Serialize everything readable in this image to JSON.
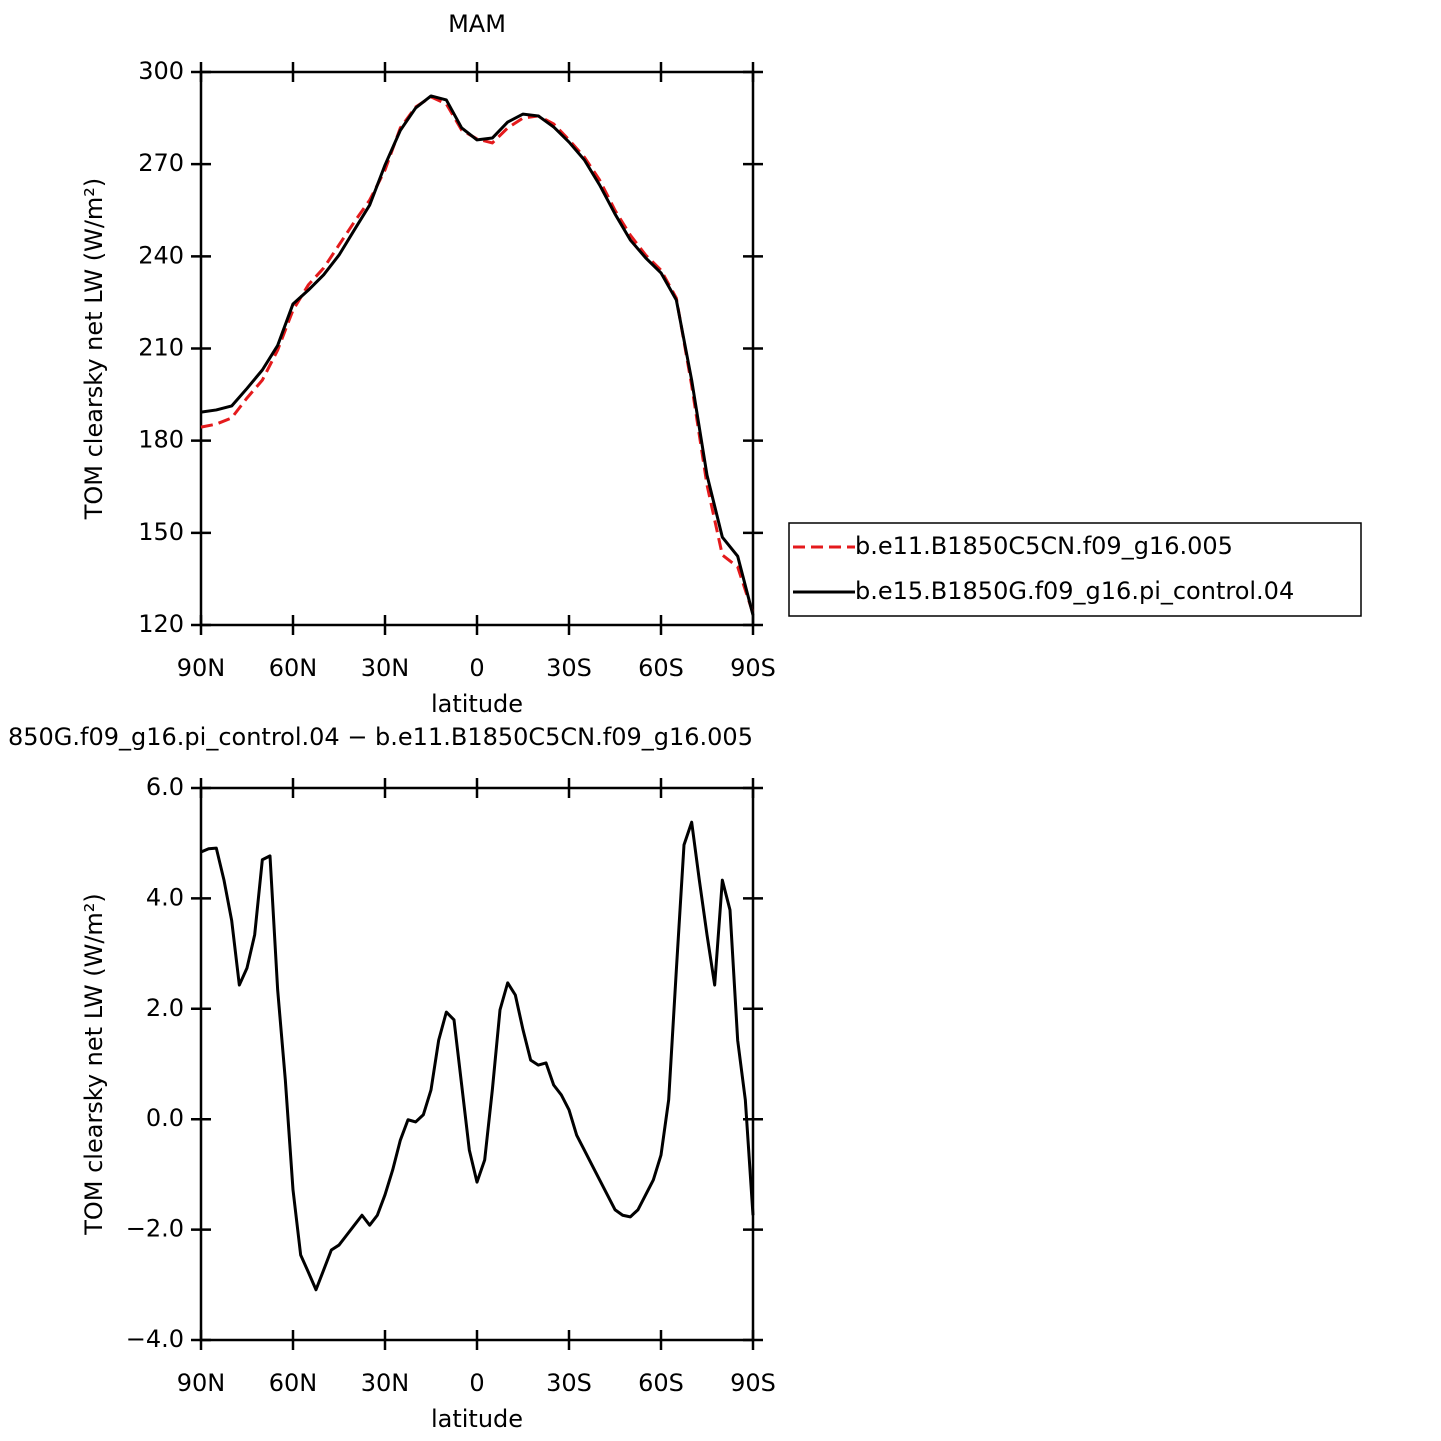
{
  "chart_data": [
    {
      "type": "line",
      "title": "MAM",
      "xlabel": "latitude",
      "ylabel": "TOM clearsky net LW (W/m²)",
      "x": [
        90,
        85,
        80,
        75,
        70,
        65,
        60,
        55,
        50,
        45,
        40,
        35,
        30,
        25,
        20,
        15,
        10,
        5,
        0,
        -5,
        -10,
        -15,
        -20,
        -25,
        -30,
        -35,
        -40,
        -45,
        -50,
        -55,
        -60,
        -65,
        -70,
        -75,
        -80,
        -85,
        -90
      ],
      "series": [
        {
          "name": "b.e11.B1850C5CN.f09_g16.005",
          "color": "#e41a1c",
          "linestyle": "dashed",
          "values": [
            184.4,
            185.4,
            187.4,
            193.9,
            199.7,
            209.5,
            222.5,
            230.7,
            236.2,
            243.7,
            251.2,
            258.3,
            268.1,
            281.8,
            288.6,
            291.9,
            289.6,
            281.1,
            278.2,
            276.9,
            281.8,
            285,
            285.7,
            283.1,
            277.9,
            272.3,
            264.8,
            255,
            246.9,
            240.4,
            235.5,
            226.4,
            198,
            165.6,
            142.8,
            138.9,
            123.8
          ]
        },
        {
          "name": "b.e15.B1850G.f09_g16.pi_control.04",
          "color": "#000000",
          "linestyle": "solid",
          "values": [
            189.3,
            190,
            191.3,
            197,
            203,
            211,
            224.5,
            229,
            234,
            240.4,
            248.6,
            256.7,
            269.7,
            281,
            288.3,
            292.2,
            290.9,
            281.8,
            277.9,
            278.5,
            283.7,
            286.3,
            285.7,
            282.1,
            277.2,
            271.4,
            263.2,
            253.8,
            245.3,
            239.5,
            234.6,
            225.8,
            199.7,
            168.8,
            148.6,
            142.4,
            123.2
          ]
        }
      ],
      "xlim": [
        90,
        -90
      ],
      "ylim": [
        120,
        300
      ],
      "xticks": [
        {
          "value": 90,
          "label": "90N"
        },
        {
          "value": 60,
          "label": "60N"
        },
        {
          "value": 30,
          "label": "30N"
        },
        0,
        {
          "value": -30,
          "label": "30S"
        },
        {
          "value": -60,
          "label": "60S"
        },
        {
          "value": -90,
          "label": "90S"
        }
      ],
      "yticks": [
        120,
        150,
        180,
        210,
        240,
        270,
        300
      ],
      "legend": "right"
    },
    {
      "type": "line",
      "title": "850G.f09_g16.pi_control.04 − b.e11.B1850C5CN.f09_g16.005",
      "xlabel": "latitude",
      "ylabel": "TOM clearsky net LW (W/m²)",
      "x": [
        90,
        87.5,
        85,
        82.5,
        80,
        77.5,
        75,
        72.5,
        70,
        67.5,
        65,
        62.5,
        60,
        57.5,
        55,
        52.5,
        50,
        47.5,
        45,
        42.5,
        40,
        37.5,
        35,
        32.5,
        30,
        27.5,
        25,
        22.5,
        20,
        17.5,
        15,
        12.5,
        10,
        7.5,
        5,
        2.5,
        0,
        -2.5,
        -5,
        -7.5,
        -10,
        -12.5,
        -15,
        -17.5,
        -20,
        -22.5,
        -25,
        -27.5,
        -30,
        -32.5,
        -35,
        -37.5,
        -40,
        -42.5,
        -45,
        -47.5,
        -50,
        -52.5,
        -55,
        -57.5,
        -60,
        -62.5,
        -65,
        -67.5,
        -70,
        -72.5,
        -75,
        -77.5,
        -80,
        -82.5,
        -85,
        -87.5,
        -90
      ],
      "series": [
        {
          "color": "#000000",
          "linestyle": "solid",
          "values": [
            4.84,
            4.9,
            4.91,
            4.33,
            3.6,
            2.43,
            2.74,
            3.34,
            4.7,
            4.77,
            2.34,
            0.71,
            -1.28,
            -2.46,
            -2.77,
            -3.09,
            -2.73,
            -2.37,
            -2.28,
            -2.1,
            -1.92,
            -1.74,
            -1.92,
            -1.74,
            -1.37,
            -0.92,
            -0.38,
            -0.01,
            -0.05,
            0.08,
            0.53,
            1.43,
            1.94,
            1.8,
            0.62,
            -0.56,
            -1.14,
            -0.74,
            0.53,
            1.98,
            2.47,
            2.25,
            1.62,
            1.07,
            0.98,
            1.02,
            0.62,
            0.44,
            0.17,
            -0.29,
            -0.56,
            -0.83,
            -1.1,
            -1.37,
            -1.64,
            -1.74,
            -1.77,
            -1.64,
            -1.37,
            -1.1,
            -0.65,
            0.35,
            2.7,
            4.97,
            5.38,
            4.33,
            3.34,
            2.43,
            4.33,
            3.79,
            1.43,
            0.35,
            -1.74
          ]
        }
      ],
      "xlim": [
        90,
        -90
      ],
      "ylim": [
        -4,
        6
      ],
      "xticks": [
        {
          "value": 90,
          "label": "90N"
        },
        {
          "value": 60,
          "label": "60N"
        },
        {
          "value": 30,
          "label": "30N"
        },
        0,
        {
          "value": -30,
          "label": "30S"
        },
        {
          "value": -60,
          "label": "60S"
        },
        {
          "value": -90,
          "label": "90S"
        }
      ],
      "yticks": [
        {
          "value": -4,
          "label": "−4.0"
        },
        {
          "value": -2,
          "label": "−2.0"
        },
        {
          "value": 0,
          "label": "0.0"
        },
        {
          "value": 2,
          "label": "2.0"
        },
        {
          "value": 4,
          "label": "4.0"
        },
        {
          "value": 6,
          "label": "6.0"
        }
      ]
    }
  ]
}
